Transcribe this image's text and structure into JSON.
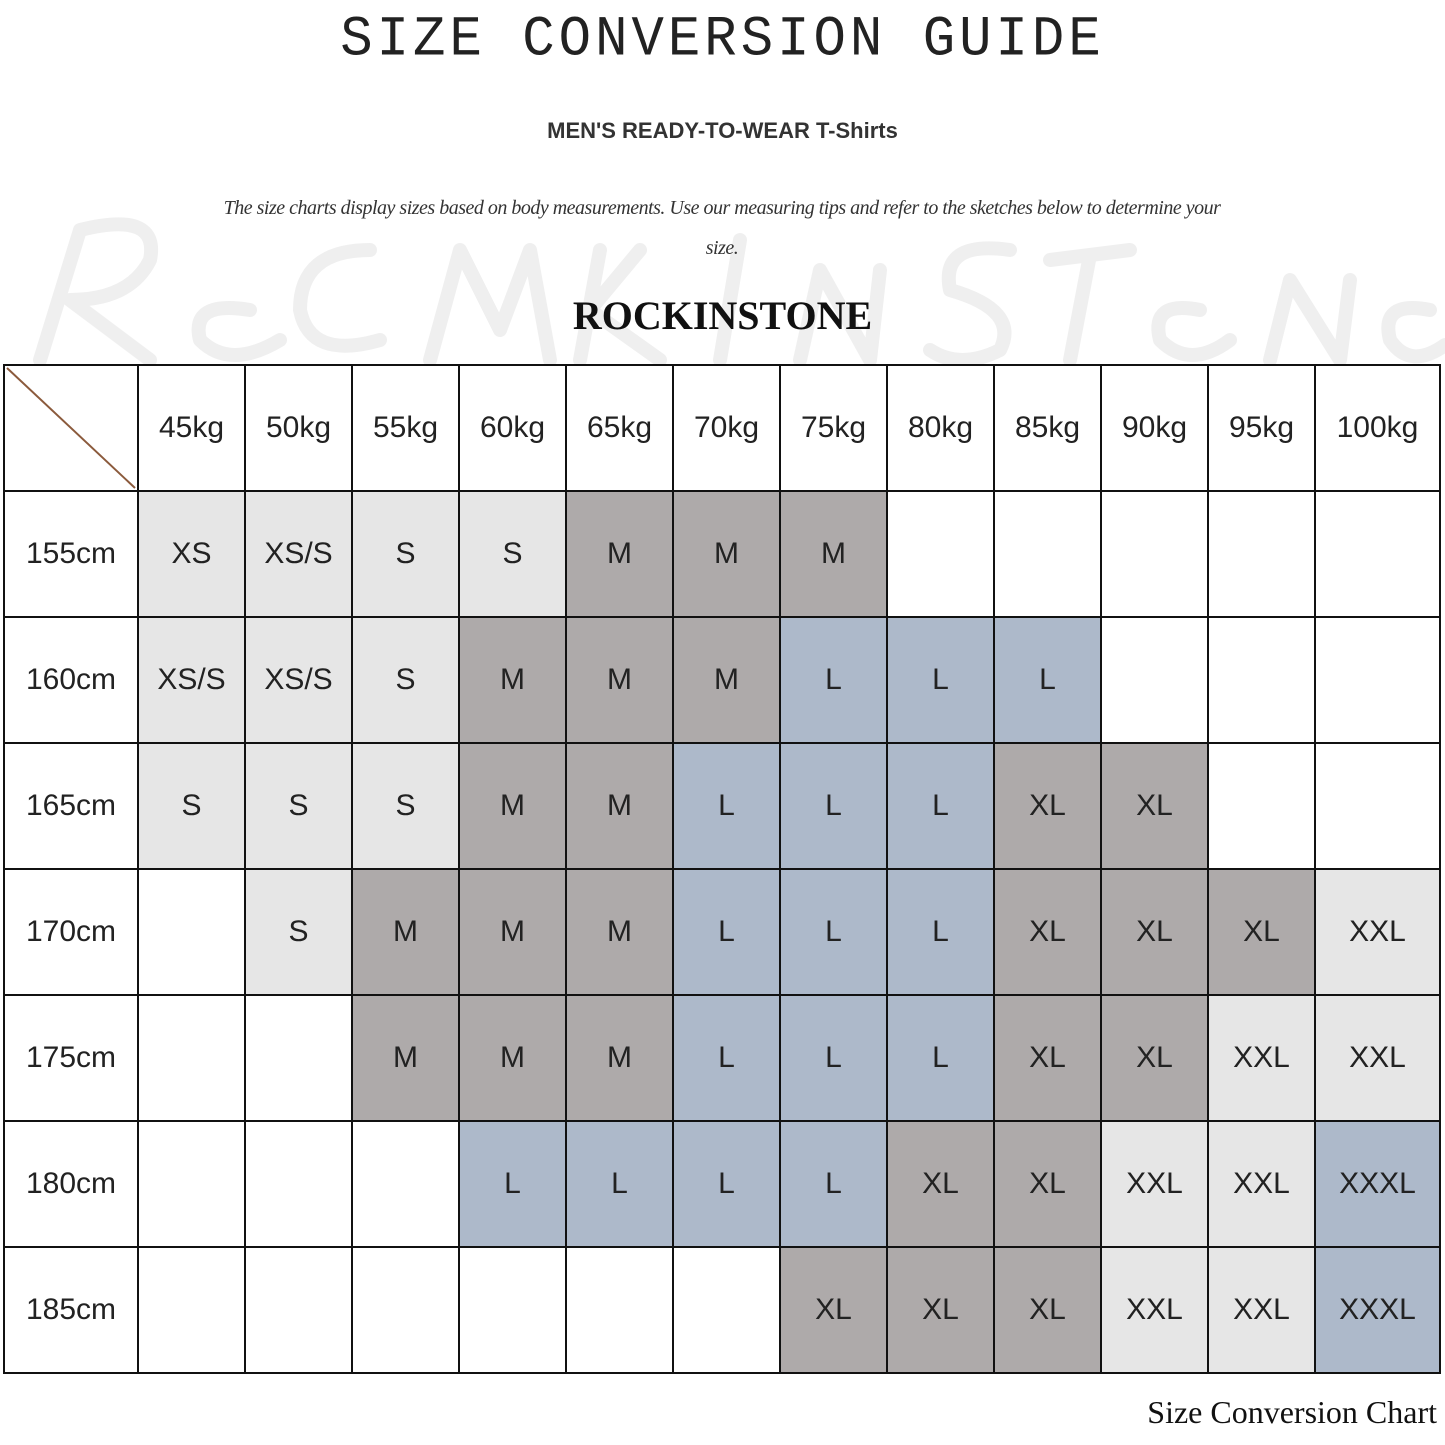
{
  "watermark": "RockInStone",
  "title": "SIZE CONVERSION GUIDE",
  "subtitle": "MEN'S READY-TO-WEAR T-Shirts",
  "description": "The size charts display sizes based on body measurements. Use our measuring tips and refer to the sketches below to determine your size.",
  "brand": "ROCKINSTONE",
  "footer": "Size Conversion Chart",
  "colors": {
    "XS": "#e6e6e6",
    "XS/S": "#e6e6e6",
    "S": "#e6e6e6",
    "M": "#aeaaaa",
    "L": "#adb9ca",
    "XL": "#aeaaaa",
    "XXL": "#e6e6e6",
    "XXXL": "#adb9ca",
    "": "#ffffff",
    "diagonal": "#8b5a3c"
  },
  "table": {
    "columns": [
      "45kg",
      "50kg",
      "55kg",
      "60kg",
      "65kg",
      "70kg",
      "75kg",
      "80kg",
      "85kg",
      "90kg",
      "95kg",
      "100kg"
    ],
    "rows": [
      {
        "height": "155cm",
        "sizes": [
          "XS",
          "XS/S",
          "S",
          "S",
          "M",
          "M",
          "M",
          "",
          "",
          "",
          "",
          ""
        ]
      },
      {
        "height": "160cm",
        "sizes": [
          "XS/S",
          "XS/S",
          "S",
          "M",
          "M",
          "M",
          "L",
          "L",
          "L",
          "",
          "",
          ""
        ]
      },
      {
        "height": "165cm",
        "sizes": [
          "S",
          "S",
          "S",
          "M",
          "M",
          "L",
          "L",
          "L",
          "XL",
          "XL",
          "",
          ""
        ]
      },
      {
        "height": "170cm",
        "sizes": [
          "",
          "S",
          "M",
          "M",
          "M",
          "L",
          "L",
          "L",
          "XL",
          "XL",
          "XL",
          "XXL"
        ]
      },
      {
        "height": "175cm",
        "sizes": [
          "",
          "",
          "M",
          "M",
          "M",
          "L",
          "L",
          "L",
          "XL",
          "XL",
          "XXL",
          "XXL"
        ]
      },
      {
        "height": "180cm",
        "sizes": [
          "",
          "",
          "",
          "L",
          "L",
          "L",
          "L",
          "XL",
          "XL",
          "XXL",
          "XXL",
          "XXXL"
        ]
      },
      {
        "height": "185cm",
        "sizes": [
          "",
          "",
          "",
          "",
          "",
          "",
          "XL",
          "XL",
          "XL",
          "XXL",
          "XXL",
          "XXXL"
        ]
      }
    ]
  }
}
